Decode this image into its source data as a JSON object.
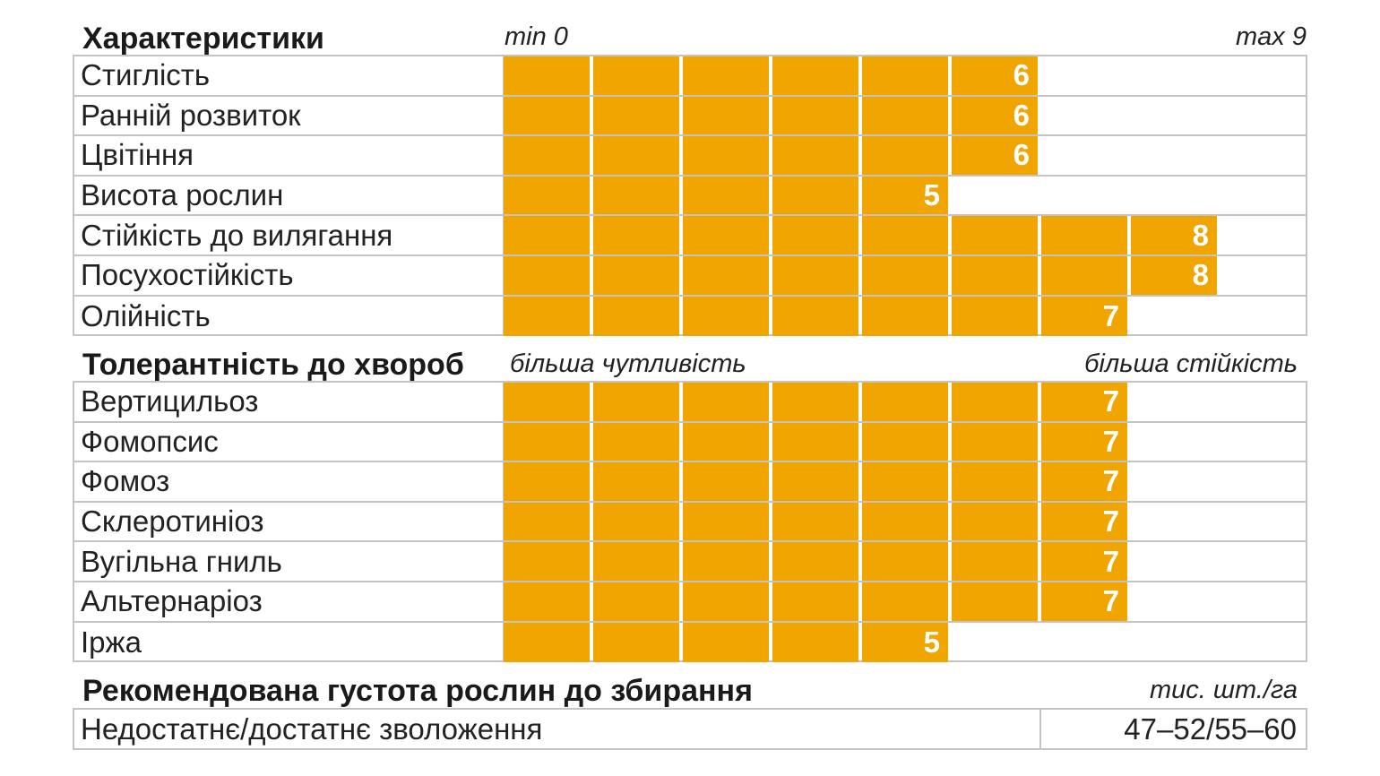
{
  "sections": {
    "characteristics": {
      "title": "Характеристики",
      "min_label": "min 0",
      "max_label": "max 9",
      "rows": [
        {
          "label": "Стиглість",
          "value": 6
        },
        {
          "label": "Ранній розвиток",
          "value": 6
        },
        {
          "label": "Цвітіння",
          "value": 6
        },
        {
          "label": "Висота рослин",
          "value": 5
        },
        {
          "label": "Стійкість до вилягання",
          "value": 8
        },
        {
          "label": "Посухостійкість",
          "value": 8
        },
        {
          "label": "Олійність",
          "value": 7
        }
      ]
    },
    "disease": {
      "title": "Толерантність до хвороб",
      "left_label": "більша чутливість",
      "right_label": "більша стійкість",
      "rows": [
        {
          "label": "Вертицильоз",
          "value": 7
        },
        {
          "label": "Фомопсис",
          "value": 7
        },
        {
          "label": "Фомоз",
          "value": 7
        },
        {
          "label": "Склеротиніоз",
          "value": 7
        },
        {
          "label": "Вугільна гниль",
          "value": 7
        },
        {
          "label": "Альтернаріоз",
          "value": 7
        },
        {
          "label": "Іржа",
          "value": 5
        }
      ]
    },
    "density": {
      "title": "Рекомендована густота рослин до збирання",
      "unit": "тис. шт./га",
      "row_label": "Недостатнє/достатнє зволоження",
      "row_value": "47–52/55–60"
    }
  },
  "colors": {
    "bar": "#f0a500",
    "grid": "#c4c4c4",
    "text": "#222222"
  },
  "chart_data": [
    {
      "type": "bar",
      "title": "Характеристики",
      "xlim": [
        0,
        9
      ],
      "categories": [
        "Стиглість",
        "Ранній розвиток",
        "Цвітіння",
        "Висота рослин",
        "Стійкість до вилягання",
        "Посухостійкість",
        "Олійність"
      ],
      "values": [
        6,
        6,
        6,
        5,
        8,
        8,
        7
      ]
    },
    {
      "type": "bar",
      "title": "Толерантність до хвороб",
      "xlim": [
        0,
        9
      ],
      "categories": [
        "Вертицильоз",
        "Фомопсис",
        "Фомоз",
        "Склеротиніоз",
        "Вугільна гниль",
        "Альтернаріоз",
        "Іржа"
      ],
      "values": [
        7,
        7,
        7,
        7,
        7,
        7,
        5
      ]
    }
  ]
}
